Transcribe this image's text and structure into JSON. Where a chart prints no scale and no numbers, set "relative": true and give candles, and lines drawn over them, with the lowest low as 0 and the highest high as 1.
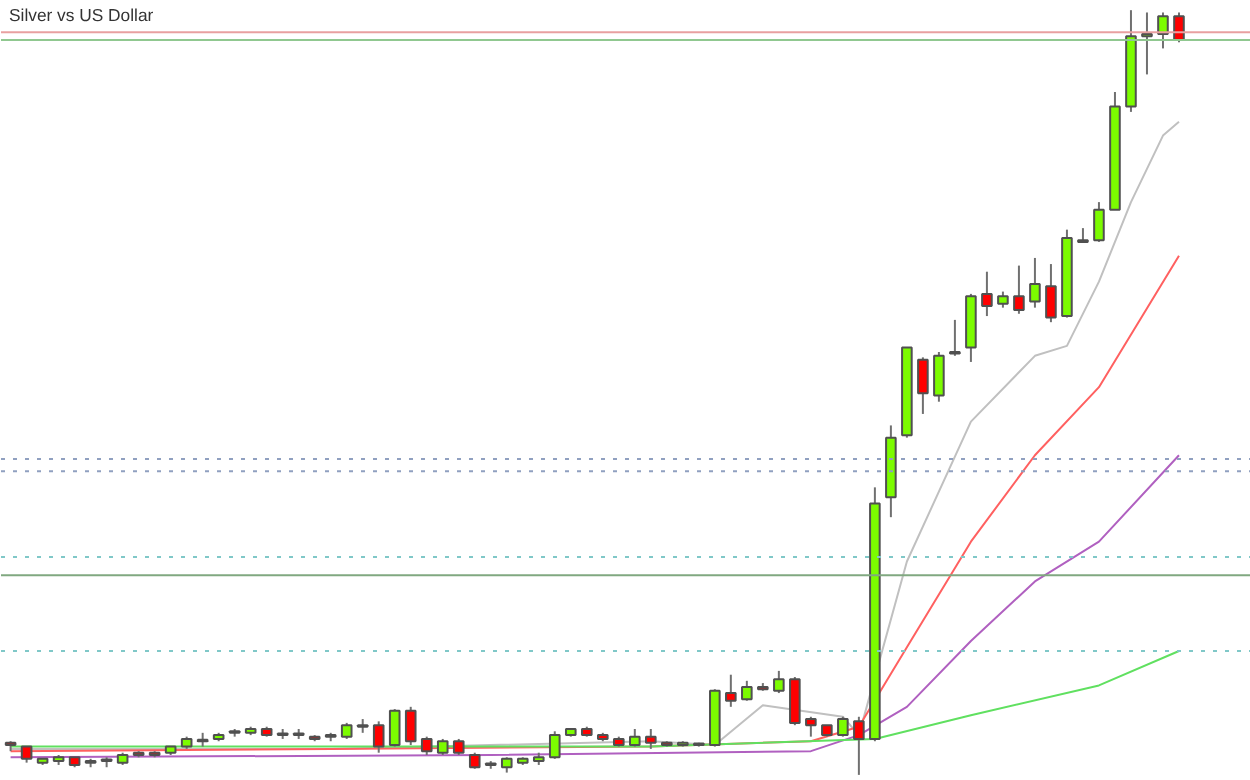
{
  "chart_data": {
    "type": "candlestick",
    "title": "Silver vs US Dollar",
    "relative": true,
    "grid": false,
    "categories": [
      null,
      null,
      null,
      null,
      null,
      null,
      null,
      null,
      null,
      null,
      null,
      null,
      null,
      null,
      null,
      null,
      null,
      null,
      null,
      null,
      null,
      null,
      null,
      null,
      null,
      null,
      null,
      null,
      null,
      null,
      null,
      null,
      null,
      null,
      null,
      null,
      null,
      null,
      null,
      null,
      null,
      null,
      null,
      null,
      null,
      null,
      null,
      null,
      null,
      null,
      null,
      null,
      null,
      null,
      null,
      null,
      null,
      null,
      null,
      null,
      null,
      null,
      null,
      null,
      null,
      null,
      null,
      null,
      null,
      null,
      null,
      null,
      null,
      null
    ],
    "ohlc": [
      [
        0.042,
        0.044,
        0.031,
        0.039
      ],
      [
        0.037,
        0.037,
        0.016,
        0.021
      ],
      [
        0.016,
        0.021,
        0.013,
        0.021
      ],
      [
        0.018,
        0.026,
        0.013,
        0.023
      ],
      [
        0.023,
        0.023,
        0.01,
        0.013
      ],
      [
        0.016,
        0.021,
        0.01,
        0.016
      ],
      [
        0.018,
        0.023,
        0.01,
        0.018
      ],
      [
        0.016,
        0.029,
        0.013,
        0.026
      ],
      [
        0.029,
        0.031,
        0.023,
        0.026
      ],
      [
        0.029,
        0.031,
        0.023,
        0.026
      ],
      [
        0.029,
        0.037,
        0.026,
        0.037
      ],
      [
        0.037,
        0.05,
        0.034,
        0.047
      ],
      [
        0.044,
        0.055,
        0.037,
        0.044
      ],
      [
        0.047,
        0.055,
        0.044,
        0.052
      ],
      [
        0.055,
        0.06,
        0.05,
        0.055
      ],
      [
        0.055,
        0.063,
        0.052,
        0.06
      ],
      [
        0.06,
        0.063,
        0.05,
        0.052
      ],
      [
        0.052,
        0.06,
        0.047,
        0.052
      ],
      [
        0.052,
        0.06,
        0.047,
        0.052
      ],
      [
        0.05,
        0.052,
        0.044,
        0.047
      ],
      [
        0.05,
        0.055,
        0.044,
        0.05
      ],
      [
        0.05,
        0.068,
        0.047,
        0.065
      ],
      [
        0.063,
        0.073,
        0.055,
        0.063
      ],
      [
        0.065,
        0.07,
        0.029,
        0.037
      ],
      [
        0.039,
        0.086,
        0.037,
        0.084
      ],
      [
        0.084,
        0.089,
        0.039,
        0.044
      ],
      [
        0.047,
        0.05,
        0.026,
        0.031
      ],
      [
        0.029,
        0.047,
        0.026,
        0.044
      ],
      [
        0.044,
        0.047,
        0.026,
        0.029
      ],
      [
        0.026,
        0.029,
        0.008,
        0.01
      ],
      [
        0.013,
        0.018,
        0.008,
        0.013
      ],
      [
        0.01,
        0.023,
        0.003,
        0.021
      ],
      [
        0.016,
        0.023,
        0.013,
        0.021
      ],
      [
        0.018,
        0.029,
        0.013,
        0.023
      ],
      [
        0.023,
        0.057,
        0.021,
        0.052
      ],
      [
        0.052,
        0.06,
        0.05,
        0.06
      ],
      [
        0.06,
        0.063,
        0.05,
        0.052
      ],
      [
        0.052,
        0.055,
        0.044,
        0.047
      ],
      [
        0.047,
        0.05,
        0.037,
        0.039
      ],
      [
        0.039,
        0.06,
        0.037,
        0.05
      ],
      [
        0.05,
        0.06,
        0.034,
        0.042
      ],
      [
        0.042,
        0.044,
        0.037,
        0.039
      ],
      [
        0.039,
        0.044,
        0.037,
        0.042
      ],
      [
        0.039,
        0.042,
        0.037,
        0.039
      ],
      [
        0.039,
        0.112,
        0.037,
        0.11
      ],
      [
        0.107,
        0.131,
        0.089,
        0.097
      ],
      [
        0.099,
        0.123,
        0.097,
        0.115
      ],
      [
        0.115,
        0.12,
        0.11,
        0.112
      ],
      [
        0.11,
        0.136,
        0.107,
        0.125
      ],
      [
        0.125,
        0.128,
        0.065,
        0.068
      ],
      [
        0.073,
        0.076,
        0.05,
        0.065
      ],
      [
        0.065,
        0.065,
        0.05,
        0.052
      ],
      [
        0.052,
        0.076,
        0.05,
        0.073
      ],
      [
        0.07,
        0.076,
        0.0,
        0.047
      ],
      [
        0.047,
        0.376,
        0.044,
        0.355
      ],
      [
        0.363,
        0.457,
        0.337,
        0.441
      ],
      [
        0.444,
        0.559,
        0.441,
        0.559
      ],
      [
        0.543,
        0.546,
        0.472,
        0.499
      ],
      [
        0.496,
        0.553,
        0.488,
        0.548
      ],
      [
        0.551,
        0.595,
        0.548,
        0.553
      ],
      [
        0.559,
        0.629,
        0.54,
        0.626
      ],
      [
        0.629,
        0.658,
        0.6,
        0.613
      ],
      [
        0.616,
        0.632,
        0.611,
        0.626
      ],
      [
        0.626,
        0.666,
        0.603,
        0.608
      ],
      [
        0.619,
        0.676,
        0.611,
        0.642
      ],
      [
        0.639,
        0.668,
        0.592,
        0.598
      ],
      [
        0.6,
        0.713,
        0.598,
        0.702
      ],
      [
        0.699,
        0.715,
        0.697,
        0.697
      ],
      [
        0.699,
        0.749,
        0.697,
        0.739
      ],
      [
        0.739,
        0.893,
        0.739,
        0.874
      ],
      [
        0.874,
        1.0,
        0.867,
        0.966
      ],
      [
        0.966,
        0.997,
        0.916,
        0.969
      ],
      [
        0.969,
        0.997,
        0.95,
        0.992
      ],
      [
        0.992,
        0.997,
        0.958,
        0.961
      ]
    ],
    "colors": [
      "#ff0000",
      "#ff0000",
      "#7cfc00",
      "#7cfc00",
      "#ff0000",
      "#7cfc00",
      "#7cfc00",
      "#7cfc00",
      "#ff0000",
      "#ff0000",
      "#7cfc00",
      "#7cfc00",
      "#7cfc00",
      "#7cfc00",
      "#7cfc00",
      "#7cfc00",
      "#ff0000",
      "#7cfc00",
      "#7cfc00",
      "#ff0000",
      "#7cfc00",
      "#7cfc00",
      "#7cfc00",
      "#ff0000",
      "#7cfc00",
      "#ff0000",
      "#ff0000",
      "#7cfc00",
      "#ff0000",
      "#ff0000",
      "#7cfc00",
      "#7cfc00",
      "#7cfc00",
      "#7cfc00",
      "#7cfc00",
      "#7cfc00",
      "#ff0000",
      "#ff0000",
      "#ff0000",
      "#7cfc00",
      "#ff0000",
      "#ff0000",
      "#7cfc00",
      "#7cfc00",
      "#7cfc00",
      "#ff0000",
      "#7cfc00",
      "#ff0000",
      "#7cfc00",
      "#ff0000",
      "#ff0000",
      "#ff0000",
      "#7cfc00",
      "#ff0000",
      "#7cfc00",
      "#7cfc00",
      "#7cfc00",
      "#ff0000",
      "#7cfc00",
      "#7cfc00",
      "#7cfc00",
      "#ff0000",
      "#7cfc00",
      "#ff0000",
      "#7cfc00",
      "#ff0000",
      "#7cfc00",
      "#ff0000",
      "#7cfc00",
      "#7cfc00",
      "#7cfc00",
      "#7cfc00",
      "#7cfc00",
      "#ff0000"
    ],
    "series": [
      {
        "type": "line",
        "color": "#c0c0c0",
        "values": [
          0.034,
          null,
          null,
          null,
          null,
          null,
          null,
          null,
          null,
          null,
          null,
          null,
          null,
          null,
          null,
          null,
          null,
          null,
          null,
          null,
          0.034,
          null,
          null,
          null,
          null,
          null,
          null,
          null,
          null,
          null,
          null,
          null,
          null,
          null,
          null,
          null,
          null,
          null,
          null,
          null,
          0.044,
          null,
          null,
          null,
          0.039,
          null,
          null,
          0.091,
          null,
          null,
          null,
          null,
          0.076,
          0.052,
          null,
          null,
          0.279,
          null,
          null,
          null,
          0.462,
          null,
          null,
          null,
          0.548,
          null,
          0.561,
          null,
          0.645,
          null,
          0.749,
          null,
          0.836,
          0.854
        ]
      },
      {
        "type": "line",
        "color": "#ff6060",
        "values": [
          0.031,
          null,
          null,
          null,
          null,
          null,
          null,
          null,
          null,
          null,
          null,
          null,
          null,
          null,
          null,
          null,
          null,
          null,
          null,
          null,
          0.034,
          null,
          null,
          null,
          null,
          null,
          null,
          null,
          null,
          null,
          null,
          null,
          null,
          null,
          null,
          null,
          null,
          null,
          null,
          null,
          0.037,
          null,
          null,
          null,
          null,
          null,
          null,
          null,
          null,
          null,
          0.044,
          null,
          null,
          0.063,
          null,
          null,
          0.167,
          null,
          null,
          null,
          0.305,
          null,
          null,
          null,
          0.418,
          null,
          null,
          null,
          0.507,
          null,
          null,
          null,
          null,
          0.679
        ]
      },
      {
        "type": "line",
        "color": "#b060c0",
        "values": [
          0.023,
          null,
          null,
          null,
          null,
          null,
          null,
          null,
          null,
          null,
          null,
          null,
          null,
          null,
          null,
          null,
          null,
          null,
          null,
          null,
          null,
          null,
          null,
          null,
          null,
          null,
          null,
          null,
          null,
          null,
          0.026,
          null,
          null,
          null,
          null,
          null,
          null,
          null,
          null,
          null,
          null,
          null,
          null,
          null,
          null,
          null,
          null,
          null,
          null,
          null,
          0.031,
          null,
          null,
          0.052,
          null,
          null,
          0.089,
          null,
          null,
          null,
          0.175,
          null,
          null,
          null,
          0.253,
          null,
          null,
          null,
          0.305,
          null,
          null,
          null,
          null,
          0.418
        ]
      },
      {
        "type": "line",
        "color": "#60e060",
        "values": [
          0.037,
          null,
          null,
          null,
          null,
          null,
          null,
          null,
          null,
          null,
          null,
          null,
          null,
          null,
          null,
          null,
          null,
          null,
          null,
          null,
          0.037,
          null,
          null,
          null,
          null,
          null,
          null,
          null,
          null,
          null,
          null,
          null,
          null,
          null,
          null,
          null,
          null,
          null,
          null,
          null,
          0.037,
          null,
          null,
          null,
          null,
          null,
          null,
          null,
          null,
          null,
          null,
          null,
          null,
          null,
          0.047,
          null,
          null,
          null,
          null,
          null,
          0.078,
          null,
          null,
          null,
          null,
          null,
          null,
          null,
          0.117,
          null,
          null,
          null,
          null,
          0.162
        ]
      }
    ],
    "ref_lines": [
      {
        "axis": "y",
        "value": 0.971,
        "color": "#e8a0a0",
        "line_style": "solid"
      },
      {
        "axis": "y",
        "value": 0.961,
        "color": "#90c890",
        "line_style": "solid"
      },
      {
        "axis": "y",
        "value": 0.413,
        "color": "#90a0c0",
        "line_style": "dotted"
      },
      {
        "axis": "y",
        "value": 0.397,
        "color": "#90a0c0",
        "line_style": "dotted"
      },
      {
        "axis": "y",
        "value": 0.285,
        "color": "#80c8c8",
        "line_style": "dotted"
      },
      {
        "axis": "y",
        "value": 0.261,
        "color": "#80a880",
        "line_style": "solid"
      },
      {
        "axis": "y",
        "value": 0.162,
        "color": "#80c8c8",
        "line_style": "dotted"
      }
    ]
  }
}
